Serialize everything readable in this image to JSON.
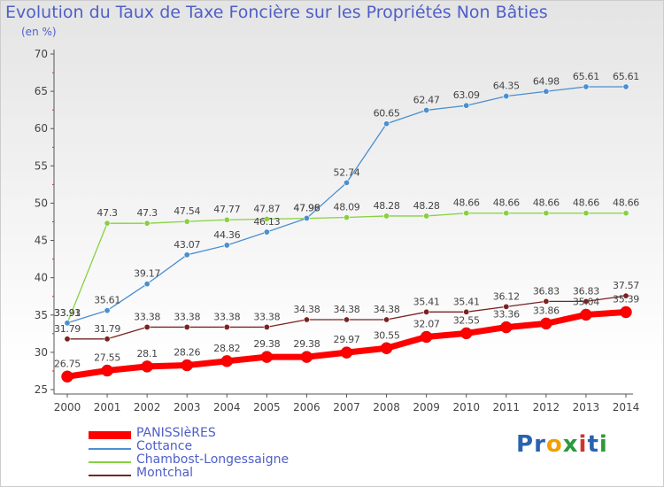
{
  "title": "Evolution du Taux de Taxe Foncière sur les Propriétés Non Bâties",
  "subtitle": "(en %)",
  "logo": {
    "text": "Proxiti",
    "colors": [
      "#2a62b0",
      "#2a62b0",
      "#f0a000",
      "#2a9a3a",
      "#d0342c",
      "#2a62b0",
      "#2a9a3a"
    ]
  },
  "chart_data": {
    "type": "line",
    "title": "Evolution du Taux de Taxe Foncière sur les Propriétés Non Bâties",
    "ylabel": "(en %)",
    "xlabel": "",
    "ylim": [
      25,
      70
    ],
    "yticks": [
      25,
      30,
      35,
      40,
      45,
      50,
      55,
      60,
      65,
      70
    ],
    "grid": "none",
    "legend_position": "bottom-left",
    "x": [
      "2000",
      "2001",
      "2002",
      "2003",
      "2004",
      "2005",
      "2006",
      "2007",
      "2008",
      "2009",
      "2010",
      "2011",
      "2012",
      "2013",
      "2014"
    ],
    "series": [
      {
        "name": "PANISSIèRES",
        "color": "#ff0000",
        "values": [
          26.75,
          27.55,
          28.1,
          28.26,
          28.82,
          29.38,
          29.38,
          29.97,
          30.55,
          32.07,
          32.55,
          33.36,
          33.86,
          35.04,
          35.39
        ],
        "labels": [
          "26.75",
          "27.55",
          "28.1",
          "28.26",
          "28.82",
          "29.38",
          "29.38",
          "29.97",
          "30.55",
          "32.07",
          "32.55",
          "33.36",
          "33.86",
          "35.04",
          "35.39"
        ]
      },
      {
        "name": "Cottance",
        "color": "#4a8fd0",
        "values": [
          33.93,
          35.61,
          39.17,
          43.07,
          44.36,
          46.13,
          47.98,
          52.74,
          60.65,
          62.47,
          63.09,
          64.35,
          64.98,
          65.61,
          65.61
        ],
        "labels": [
          "33.93",
          "35.61",
          "39.17",
          "43.07",
          "44.36",
          "46.13",
          "47.98",
          "52.74",
          "60.65",
          "62.47",
          "63.09",
          "64.35",
          "64.98",
          "65.61",
          "65.61"
        ]
      },
      {
        "name": "Chambost-Longessaigne",
        "color": "#88d040",
        "values": [
          33.91,
          47.3,
          47.3,
          47.54,
          47.77,
          47.87,
          47.96,
          48.09,
          48.28,
          48.28,
          48.66,
          48.66,
          48.66,
          48.66,
          48.66
        ],
        "labels": [
          "33.91",
          "47.3",
          "47.3",
          "47.54",
          "47.77",
          "47.87",
          "47.96",
          "48.09",
          "48.28",
          "48.28",
          "48.66",
          "48.66",
          "48.66",
          "48.66",
          "48.66"
        ]
      },
      {
        "name": "Montchal",
        "color": "#7a2222",
        "values": [
          31.79,
          31.79,
          33.38,
          33.38,
          33.38,
          33.38,
          34.38,
          34.38,
          34.38,
          35.41,
          35.41,
          36.12,
          36.83,
          36.83,
          37.57
        ],
        "labels": [
          "31.79",
          "31.79",
          "33.38",
          "33.38",
          "33.38",
          "33.38",
          "34.38",
          "34.38",
          "34.38",
          "35.41",
          "35.41",
          "36.12",
          "36.83",
          "36.83",
          "37.57"
        ]
      }
    ]
  }
}
